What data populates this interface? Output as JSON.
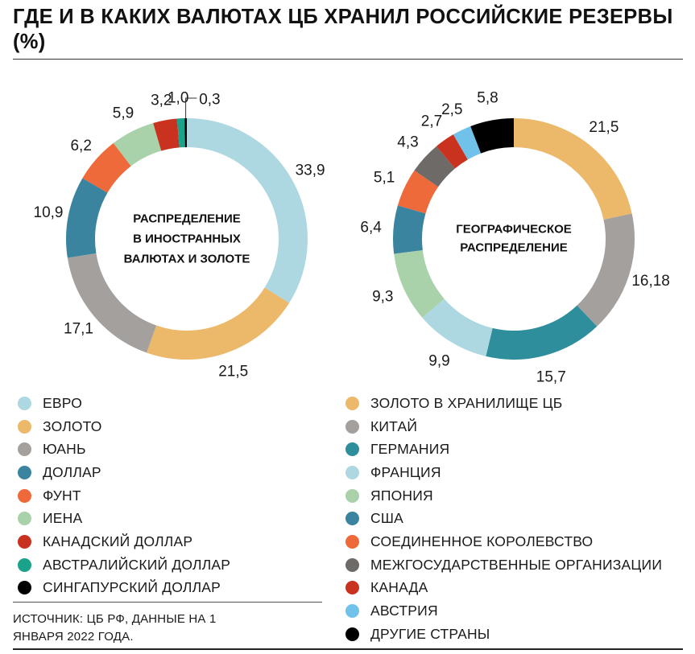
{
  "title": "ГДЕ И В КАКИХ ВАЛЮТАХ ЦБ ХРАНИЛ РОССИЙСКИЕ РЕЗЕРВЫ (%)",
  "source": "ИСТОЧНИК: ЦБ РФ, ДАННЫЕ НА 1 ЯНВАРЯ 2022 ГОДА.",
  "chart_data": [
    {
      "type": "pie",
      "style": "donut",
      "center_label": [
        "РАСПРЕДЕЛЕНИЕ",
        "В ИНОСТРАННЫХ",
        "ВАЛЮТАХ И ЗОЛОТЕ"
      ],
      "categories": [
        "ЕВРО",
        "ЗОЛОТО",
        "ЮАНЬ",
        "ДОЛЛАР",
        "ФУНТ",
        "ИЕНА",
        "КАНАДСКИЙ ДОЛЛАР",
        "АВСТРАЛИЙСКИЙ ДОЛЛАР",
        "СИНГАПУРСКИЙ ДОЛЛАР"
      ],
      "values": [
        33.9,
        21.5,
        17.1,
        10.9,
        6.2,
        5.9,
        3.2,
        1.0,
        0.3
      ],
      "value_labels": [
        "33,9",
        "21,5",
        "17,1",
        "10,9",
        "6,2",
        "5,9",
        "3,2",
        "1,0",
        "0,3"
      ],
      "colors": [
        "#add8e2",
        "#ecb86a",
        "#a3a09d",
        "#3a84a0",
        "#ef6a3a",
        "#a9d1aa",
        "#c8321f",
        "#1aa38a",
        "#000000"
      ],
      "legend_placement": "below"
    },
    {
      "type": "pie",
      "style": "donut",
      "center_label": [
        "ГЕОГРАФИЧЕСКОЕ",
        "РАСПРЕДЕЛЕНИЕ"
      ],
      "categories": [
        "ЗОЛОТО В ХРАНИЛИЩЕ ЦБ",
        "КИТАЙ",
        "ГЕРМАНИЯ",
        "ФРАНЦИЯ",
        "ЯПОНИЯ",
        "США",
        "СОЕДИНЕННОЕ КОРОЛЕВСТВО",
        "МЕЖГОСУДАРСТВЕННЫЕ ОРГАНИЗАЦИИ",
        "КАНАДА",
        "АВСТРИЯ",
        "ДРУГИЕ СТРАНЫ"
      ],
      "values": [
        21.5,
        16.18,
        15.7,
        9.9,
        9.3,
        6.4,
        5.1,
        4.3,
        2.7,
        2.5,
        5.8
      ],
      "value_labels": [
        "21,5",
        "16,18",
        "15,7",
        "9,9",
        "9,3",
        "6,4",
        "5,1",
        "4,3",
        "2,7",
        "2,5",
        "5,8"
      ],
      "colors": [
        "#ecb86a",
        "#a3a09d",
        "#2f8e9c",
        "#add8e2",
        "#a9d1aa",
        "#3a84a0",
        "#ef6a3a",
        "#6d6a68",
        "#c8321f",
        "#70c2ea",
        "#000000"
      ],
      "legend_placement": "below"
    }
  ]
}
